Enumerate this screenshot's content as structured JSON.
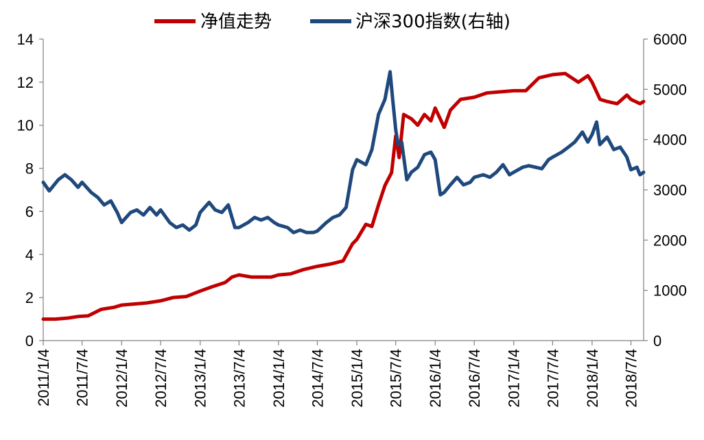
{
  "chart_data": {
    "type": "line",
    "title": "",
    "grid": false,
    "legend_position": "top",
    "y_left": {
      "range": [
        0,
        14
      ],
      "ticks": [
        0,
        2,
        4,
        6,
        8,
        10,
        12,
        14
      ]
    },
    "y_right": {
      "range": [
        0,
        6000
      ],
      "ticks": [
        0,
        1000,
        2000,
        3000,
        4000,
        5000,
        6000
      ]
    },
    "x_range": [
      "2011-01-04",
      "2018-09-01"
    ],
    "x_ticks": [
      "2011/1/4",
      "2011/7/4",
      "2012/1/4",
      "2012/7/4",
      "2013/1/4",
      "2013/7/4",
      "2014/1/4",
      "2014/7/4",
      "2015/1/4",
      "2015/7/4",
      "2016/1/4",
      "2016/7/4",
      "2017/1/4",
      "2017/7/4",
      "2018/1/4",
      "2018/7/4"
    ],
    "series": [
      {
        "name": "净值走势",
        "axis": "left",
        "color": "#C00000",
        "points": [
          [
            "2011-01-04",
            1.0
          ],
          [
            "2011-03-01",
            1.0
          ],
          [
            "2011-05-01",
            1.05
          ],
          [
            "2011-06-15",
            1.12
          ],
          [
            "2011-08-01",
            1.15
          ],
          [
            "2011-10-01",
            1.45
          ],
          [
            "2011-12-01",
            1.55
          ],
          [
            "2012-01-04",
            1.65
          ],
          [
            "2012-03-01",
            1.7
          ],
          [
            "2012-05-01",
            1.75
          ],
          [
            "2012-07-04",
            1.85
          ],
          [
            "2012-09-01",
            2.0
          ],
          [
            "2012-11-01",
            2.05
          ],
          [
            "2013-01-04",
            2.3
          ],
          [
            "2013-03-01",
            2.5
          ],
          [
            "2013-05-01",
            2.7
          ],
          [
            "2013-06-01",
            2.95
          ],
          [
            "2013-07-04",
            3.05
          ],
          [
            "2013-09-01",
            2.95
          ],
          [
            "2013-12-01",
            2.95
          ],
          [
            "2014-01-04",
            3.05
          ],
          [
            "2014-03-01",
            3.1
          ],
          [
            "2014-05-01",
            3.3
          ],
          [
            "2014-07-04",
            3.45
          ],
          [
            "2014-09-01",
            3.55
          ],
          [
            "2014-11-01",
            3.7
          ],
          [
            "2014-12-15",
            4.5
          ],
          [
            "2015-01-04",
            4.7
          ],
          [
            "2015-02-15",
            5.4
          ],
          [
            "2015-03-15",
            5.3
          ],
          [
            "2015-04-15",
            6.3
          ],
          [
            "2015-05-15",
            7.2
          ],
          [
            "2015-06-15",
            7.8
          ],
          [
            "2015-07-04",
            9.5
          ],
          [
            "2015-07-20",
            8.5
          ],
          [
            "2015-08-10",
            10.5
          ],
          [
            "2015-09-15",
            10.3
          ],
          [
            "2015-10-15",
            10.0
          ],
          [
            "2015-11-15",
            10.5
          ],
          [
            "2015-12-15",
            10.2
          ],
          [
            "2016-01-04",
            10.8
          ],
          [
            "2016-02-15",
            9.9
          ],
          [
            "2016-03-15",
            10.7
          ],
          [
            "2016-05-01",
            11.2
          ],
          [
            "2016-07-04",
            11.3
          ],
          [
            "2016-09-01",
            11.5
          ],
          [
            "2016-11-01",
            11.55
          ],
          [
            "2017-01-04",
            11.6
          ],
          [
            "2017-03-01",
            11.6
          ],
          [
            "2017-05-01",
            12.2
          ],
          [
            "2017-07-04",
            12.35
          ],
          [
            "2017-09-01",
            12.4
          ],
          [
            "2017-11-01",
            12.0
          ],
          [
            "2017-12-15",
            12.3
          ],
          [
            "2018-01-04",
            12.0
          ],
          [
            "2018-02-10",
            11.2
          ],
          [
            "2018-03-15",
            11.1
          ],
          [
            "2018-05-01",
            11.0
          ],
          [
            "2018-06-15",
            11.4
          ],
          [
            "2018-07-04",
            11.2
          ],
          [
            "2018-08-15",
            11.0
          ],
          [
            "2018-09-01",
            11.1
          ]
        ]
      },
      {
        "name": "沪深300指数(右轴)",
        "axis": "right",
        "color": "#1F497D",
        "points": [
          [
            "2011-01-04",
            3150
          ],
          [
            "2011-02-01",
            2980
          ],
          [
            "2011-03-15",
            3200
          ],
          [
            "2011-04-15",
            3300
          ],
          [
            "2011-05-15",
            3200
          ],
          [
            "2011-06-15",
            3050
          ],
          [
            "2011-07-04",
            3150
          ],
          [
            "2011-08-15",
            2950
          ],
          [
            "2011-09-15",
            2850
          ],
          [
            "2011-10-15",
            2700
          ],
          [
            "2011-11-15",
            2780
          ],
          [
            "2011-12-15",
            2550
          ],
          [
            "2012-01-04",
            2350
          ],
          [
            "2012-02-15",
            2550
          ],
          [
            "2012-03-15",
            2600
          ],
          [
            "2012-04-15",
            2500
          ],
          [
            "2012-05-15",
            2650
          ],
          [
            "2012-06-15",
            2500
          ],
          [
            "2012-07-04",
            2600
          ],
          [
            "2012-08-15",
            2350
          ],
          [
            "2012-09-15",
            2250
          ],
          [
            "2012-10-15",
            2300
          ],
          [
            "2012-11-15",
            2200
          ],
          [
            "2012-12-15",
            2300
          ],
          [
            "2013-01-04",
            2550
          ],
          [
            "2013-02-15",
            2750
          ],
          [
            "2013-03-15",
            2600
          ],
          [
            "2013-04-15",
            2550
          ],
          [
            "2013-05-15",
            2700
          ],
          [
            "2013-06-15",
            2250
          ],
          [
            "2013-07-04",
            2250
          ],
          [
            "2013-08-15",
            2350
          ],
          [
            "2013-09-15",
            2450
          ],
          [
            "2013-10-15",
            2400
          ],
          [
            "2013-11-15",
            2450
          ],
          [
            "2013-12-15",
            2350
          ],
          [
            "2014-01-04",
            2300
          ],
          [
            "2014-02-15",
            2250
          ],
          [
            "2014-03-15",
            2150
          ],
          [
            "2014-04-15",
            2200
          ],
          [
            "2014-05-15",
            2150
          ],
          [
            "2014-06-15",
            2150
          ],
          [
            "2014-07-04",
            2180
          ],
          [
            "2014-08-15",
            2350
          ],
          [
            "2014-09-15",
            2450
          ],
          [
            "2014-10-15",
            2500
          ],
          [
            "2014-11-15",
            2650
          ],
          [
            "2014-12-15",
            3400
          ],
          [
            "2015-01-04",
            3600
          ],
          [
            "2015-02-15",
            3500
          ],
          [
            "2015-03-15",
            3800
          ],
          [
            "2015-04-15",
            4500
          ],
          [
            "2015-05-15",
            4800
          ],
          [
            "2015-06-08",
            5350
          ],
          [
            "2015-06-20",
            4800
          ],
          [
            "2015-07-04",
            4200
          ],
          [
            "2015-07-15",
            3900
          ],
          [
            "2015-08-01",
            3950
          ],
          [
            "2015-08-25",
            3200
          ],
          [
            "2015-09-15",
            3350
          ],
          [
            "2015-10-15",
            3450
          ],
          [
            "2015-11-15",
            3700
          ],
          [
            "2015-12-15",
            3750
          ],
          [
            "2016-01-04",
            3600
          ],
          [
            "2016-01-28",
            2900
          ],
          [
            "2016-02-15",
            2950
          ],
          [
            "2016-03-15",
            3100
          ],
          [
            "2016-04-15",
            3250
          ],
          [
            "2016-05-15",
            3100
          ],
          [
            "2016-06-15",
            3150
          ],
          [
            "2016-07-04",
            3250
          ],
          [
            "2016-08-15",
            3300
          ],
          [
            "2016-09-15",
            3250
          ],
          [
            "2016-10-15",
            3350
          ],
          [
            "2016-11-15",
            3500
          ],
          [
            "2016-12-15",
            3300
          ],
          [
            "2017-01-04",
            3350
          ],
          [
            "2017-02-15",
            3450
          ],
          [
            "2017-03-15",
            3480
          ],
          [
            "2017-04-15",
            3450
          ],
          [
            "2017-05-15",
            3420
          ],
          [
            "2017-06-15",
            3600
          ],
          [
            "2017-07-04",
            3650
          ],
          [
            "2017-08-15",
            3750
          ],
          [
            "2017-09-15",
            3850
          ],
          [
            "2017-10-15",
            3950
          ],
          [
            "2017-11-20",
            4150
          ],
          [
            "2017-12-15",
            3950
          ],
          [
            "2018-01-04",
            4100
          ],
          [
            "2018-01-25",
            4350
          ],
          [
            "2018-02-09",
            3900
          ],
          [
            "2018-03-15",
            4050
          ],
          [
            "2018-04-15",
            3800
          ],
          [
            "2018-05-15",
            3850
          ],
          [
            "2018-06-15",
            3650
          ],
          [
            "2018-07-04",
            3400
          ],
          [
            "2018-08-01",
            3450
          ],
          [
            "2018-08-15",
            3300
          ],
          [
            "2018-09-01",
            3350
          ]
        ]
      }
    ]
  }
}
